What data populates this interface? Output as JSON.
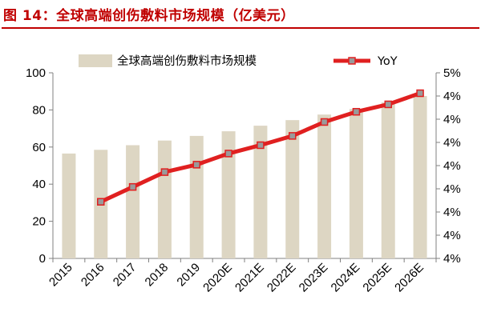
{
  "title": "图 14：全球高端创伤敷料市场规模（亿美元）",
  "colors": {
    "title": "#c00000",
    "bar": "#ddd6c3",
    "line": "#e02020",
    "marker_fill": "#9a9a9a",
    "axis": "#808080"
  },
  "chart_data": {
    "type": "bar",
    "title": "全球高端创伤敷料市场规模（亿美元）",
    "xlabel": "",
    "ylabel": "",
    "categories": [
      "2015",
      "2016",
      "2017",
      "2018",
      "2019",
      "2020E",
      "2021E",
      "2022E",
      "2023E",
      "2024E",
      "2025E",
      "2026E"
    ],
    "ylim": [
      0,
      100
    ],
    "yticks": [
      0,
      20,
      40,
      60,
      80,
      100
    ],
    "y2lim": [
      4.0,
      5.0
    ],
    "y2ticks": [
      "4%",
      "4%",
      "4%",
      "4%",
      "4%",
      "4%",
      "4%",
      "4%",
      "5%"
    ],
    "series": [
      {
        "name": "全球高端创伤敷料市场规模",
        "type": "bar",
        "axis": "left",
        "values": [
          56.5,
          58.5,
          61,
          63.5,
          66,
          68.5,
          71.5,
          74.5,
          77.5,
          80.5,
          84,
          87.5
        ]
      },
      {
        "name": "YoY",
        "type": "line",
        "axis": "right",
        "values": [
          null,
          4.305,
          4.385,
          4.465,
          4.505,
          4.565,
          4.61,
          4.66,
          4.735,
          4.79,
          4.83,
          4.89
        ]
      }
    ],
    "legend": {
      "position": "top-center",
      "bar_label": "全球高端创伤敷料市场规模",
      "line_label": "YoY"
    },
    "grid": false
  }
}
